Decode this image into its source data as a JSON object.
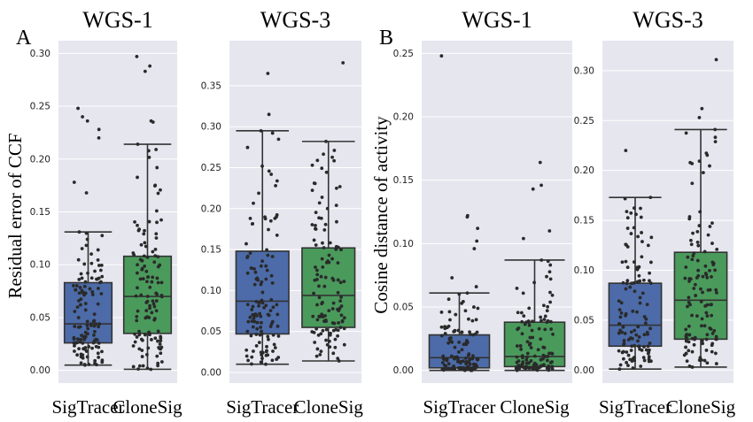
{
  "figure": {
    "panel_labels": [
      "A",
      "B"
    ],
    "ylabels": [
      "Residual error of CCF",
      "Cosine distance of activity"
    ]
  },
  "style": {
    "plot_bg": "#e6e6ef",
    "grid": "#ffffff",
    "box_colors": [
      "#4c6ba8",
      "#4a9a5c"
    ],
    "line": "#333333",
    "point": "#2a2a2a"
  },
  "chart_data": [
    {
      "type": "box",
      "panel": "A",
      "title": "WGS-1",
      "categories": [
        "SigTracer",
        "CloneSig"
      ],
      "yticks": [
        0.0,
        0.05,
        0.1,
        0.15,
        0.2,
        0.25,
        0.3
      ],
      "ytick_labels": [
        "0.00",
        "0.05",
        "0.10",
        "0.15",
        "0.20",
        "0.25",
        "0.30"
      ],
      "ylim": [
        -0.012,
        0.312
      ],
      "boxes": [
        {
          "name": "SigTracer",
          "whislo": 0.005,
          "q1": 0.026,
          "med": 0.044,
          "q3": 0.083,
          "whishi": 0.131,
          "fliers": [
            0.168,
            0.178,
            0.22,
            0.228,
            0.236,
            0.24,
            0.248
          ]
        },
        {
          "name": "CloneSig",
          "whislo": 0.001,
          "q1": 0.035,
          "med": 0.07,
          "q3": 0.108,
          "whishi": 0.214,
          "fliers": [
            0.235,
            0.236,
            0.283,
            0.288,
            0.297
          ]
        }
      ],
      "n_points": 120
    },
    {
      "type": "box",
      "panel": "A",
      "title": "WGS-3",
      "categories": [
        "SigTracer",
        "CloneSig"
      ],
      "yticks": [
        0.0,
        0.05,
        0.1,
        0.15,
        0.2,
        0.25,
        0.3,
        0.35
      ],
      "ytick_labels": [
        "0.00",
        "0.05",
        "0.10",
        "0.15",
        "0.20",
        "0.25",
        "0.30",
        "0.35"
      ],
      "ylim": [
        -0.013,
        0.405
      ],
      "boxes": [
        {
          "name": "SigTracer",
          "whislo": 0.01,
          "q1": 0.047,
          "med": 0.087,
          "q3": 0.148,
          "whishi": 0.295,
          "fliers": [
            0.315,
            0.365
          ]
        },
        {
          "name": "CloneSig",
          "whislo": 0.014,
          "q1": 0.055,
          "med": 0.094,
          "q3": 0.152,
          "whishi": 0.282,
          "fliers": [
            0.378
          ]
        }
      ],
      "n_points": 120
    },
    {
      "type": "box",
      "panel": "B",
      "title": "WGS-1",
      "categories": [
        "SigTracer",
        "CloneSig"
      ],
      "yticks": [
        0.0,
        0.05,
        0.1,
        0.15,
        0.2,
        0.25
      ],
      "ytick_labels": [
        "0.00",
        "0.05",
        "0.10",
        "0.15",
        "0.20",
        "0.25"
      ],
      "ylim": [
        -0.01,
        0.26
      ],
      "boxes": [
        {
          "name": "SigTracer",
          "whislo": 0.0,
          "q1": 0.002,
          "med": 0.01,
          "q3": 0.028,
          "whishi": 0.061,
          "fliers": [
            0.066,
            0.073,
            0.096,
            0.102,
            0.112,
            0.121,
            0.122,
            0.248
          ]
        },
        {
          "name": "CloneSig",
          "whislo": 0.0,
          "q1": 0.003,
          "med": 0.011,
          "q3": 0.038,
          "whishi": 0.087,
          "fliers": [
            0.104,
            0.11,
            0.143,
            0.146,
            0.164
          ]
        }
      ],
      "n_points": 120
    },
    {
      "type": "box",
      "panel": "B",
      "title": "WGS-3",
      "categories": [
        "SigTracer",
        "CloneSig"
      ],
      "yticks": [
        0.0,
        0.05,
        0.1,
        0.15,
        0.2,
        0.25,
        0.3
      ],
      "ytick_labels": [
        "0.00",
        "0.05",
        "0.10",
        "0.15",
        "0.20",
        "0.25",
        "0.30"
      ],
      "ylim": [
        -0.013,
        0.33
      ],
      "boxes": [
        {
          "name": "SigTracer",
          "whislo": 0.001,
          "q1": 0.024,
          "med": 0.045,
          "q3": 0.087,
          "whishi": 0.173,
          "fliers": [
            0.22
          ]
        },
        {
          "name": "CloneSig",
          "whislo": 0.003,
          "q1": 0.031,
          "med": 0.07,
          "q3": 0.118,
          "whishi": 0.241,
          "fliers": [
            0.253,
            0.262,
            0.311
          ]
        }
      ],
      "n_points": 120
    }
  ]
}
